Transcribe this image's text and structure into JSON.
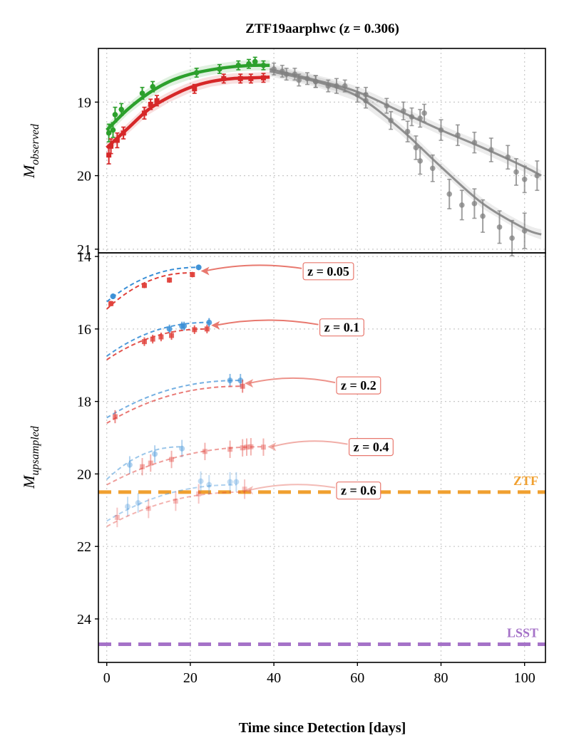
{
  "chart_data": [
    {
      "type": "line",
      "panel": "top",
      "title": "ZTF19aarphwc (z = 0.306)",
      "xlabel": "",
      "ylabel": "M_observed",
      "ylabel_main": "M",
      "ylabel_sub": "observed",
      "xlim": [
        -2,
        105
      ],
      "ylim_inverted": [
        21.05,
        18.27
      ],
      "yticks": [
        19,
        20,
        21
      ],
      "grid": true,
      "series": [
        {
          "name": "green band (early)",
          "color": "#2ca02c",
          "x": [
            0.5,
            1.5,
            2.0,
            3.5,
            8.5,
            11.0,
            21.5,
            27.0,
            31.5,
            34.0,
            35.5,
            37.5
          ],
          "y": [
            19.42,
            19.38,
            19.17,
            19.1,
            18.88,
            18.79,
            18.6,
            18.55,
            18.5,
            18.48,
            18.45,
            18.5
          ],
          "err": [
            0.12,
            0.1,
            0.1,
            0.08,
            0.08,
            0.07,
            0.06,
            0.06,
            0.06,
            0.06,
            0.06,
            0.06
          ],
          "fit": [
            [
              0,
              19.38
            ],
            [
              5,
              19.1
            ],
            [
              10,
              18.88
            ],
            [
              15,
              18.72
            ],
            [
              20,
              18.62
            ],
            [
              25,
              18.56
            ],
            [
              30,
              18.52
            ],
            [
              35,
              18.5
            ],
            [
              39,
              18.5
            ]
          ]
        },
        {
          "name": "red band (early)",
          "color": "#d62728",
          "x": [
            0.5,
            1.0,
            2.5,
            4.0,
            9.0,
            10.5,
            12.0,
            21.0,
            28.0,
            32.0,
            34.5,
            37.5
          ],
          "y": [
            19.72,
            19.6,
            19.52,
            19.42,
            19.15,
            19.03,
            18.98,
            18.82,
            18.68,
            18.68,
            18.68,
            18.67
          ],
          "err": [
            0.12,
            0.1,
            0.1,
            0.08,
            0.08,
            0.07,
            0.07,
            0.06,
            0.06,
            0.06,
            0.06,
            0.06
          ],
          "fit": [
            [
              0,
              19.62
            ],
            [
              5,
              19.36
            ],
            [
              10,
              19.1
            ],
            [
              15,
              18.93
            ],
            [
              20,
              18.8
            ],
            [
              25,
              18.72
            ],
            [
              30,
              18.68
            ],
            [
              35,
              18.67
            ],
            [
              39,
              18.66
            ]
          ]
        },
        {
          "name": "late band A",
          "color": "#808080",
          "x": [
            40,
            42,
            45,
            48,
            50,
            53,
            57,
            62,
            67,
            71,
            73,
            75,
            76,
            80,
            84,
            88,
            92,
            96,
            98,
            100,
            103
          ],
          "y": [
            18.55,
            18.58,
            18.62,
            18.68,
            18.72,
            18.78,
            18.78,
            18.9,
            19.05,
            19.12,
            19.2,
            19.22,
            19.15,
            19.38,
            19.45,
            19.55,
            19.65,
            19.75,
            19.95,
            20.05,
            20.0
          ],
          "err": [
            0.08,
            0.08,
            0.08,
            0.08,
            0.08,
            0.08,
            0.08,
            0.1,
            0.1,
            0.12,
            0.12,
            0.12,
            0.12,
            0.14,
            0.14,
            0.14,
            0.16,
            0.16,
            0.18,
            0.18,
            0.2
          ],
          "fit": [
            [
              39,
              18.55
            ],
            [
              50,
              18.7
            ],
            [
              60,
              18.86
            ],
            [
              70,
              19.12
            ],
            [
              80,
              19.38
            ],
            [
              90,
              19.62
            ],
            [
              100,
              19.88
            ],
            [
              104,
              20.0
            ]
          ]
        },
        {
          "name": "late band B",
          "color": "#808080",
          "x": [
            43,
            46,
            50,
            55,
            60,
            62,
            68,
            72,
            74,
            75,
            78,
            82,
            85,
            88,
            90,
            94,
            97,
            100
          ],
          "y": [
            18.62,
            18.7,
            18.72,
            18.78,
            18.9,
            18.98,
            19.25,
            19.4,
            19.62,
            19.8,
            19.9,
            20.25,
            20.4,
            20.38,
            20.55,
            20.7,
            20.85,
            20.75
          ],
          "err": [
            0.08,
            0.08,
            0.08,
            0.1,
            0.1,
            0.1,
            0.12,
            0.14,
            0.16,
            0.18,
            0.18,
            0.2,
            0.2,
            0.2,
            0.22,
            0.22,
            0.24,
            0.24
          ],
          "fit": [
            [
              39,
              18.58
            ],
            [
              50,
              18.72
            ],
            [
              60,
              18.92
            ],
            [
              70,
              19.35
            ],
            [
              80,
              19.88
            ],
            [
              90,
              20.38
            ],
            [
              100,
              20.72
            ],
            [
              104,
              20.8
            ]
          ]
        }
      ]
    },
    {
      "type": "line",
      "panel": "bottom",
      "title": "",
      "xlabel": "Time since Detection [days]",
      "ylabel": "M_upsampled",
      "ylabel_main": "M",
      "ylabel_sub": "upsampled",
      "xlim": [
        -2,
        105
      ],
      "ylim_inverted": [
        25.2,
        13.9
      ],
      "xticks": [
        0,
        20,
        40,
        60,
        80,
        100
      ],
      "yticks": [
        14,
        16,
        18,
        20,
        22,
        24
      ],
      "grid": true,
      "limits": [
        {
          "label": "ZTF",
          "value": 20.5,
          "color": "#f0a030"
        },
        {
          "label": "LSST",
          "value": 24.7,
          "color": "#a572c8"
        }
      ],
      "redshift_groups": [
        {
          "label": "z = 0.05",
          "label_x": 47,
          "label_y": 14.25,
          "arrow_to_x": 22.5,
          "arrow_to_y": 14.4,
          "alpha": 0.95,
          "blue": {
            "x": [
              1.5,
              22
            ],
            "y": [
              15.1,
              14.3
            ],
            "curve_start": 15.25,
            "curve_end": 14.3
          },
          "red": {
            "x": [
              1,
              9,
              15,
              20.5
            ],
            "y": [
              15.3,
              14.8,
              14.65,
              14.5
            ],
            "curve_start": 15.45,
            "curve_end": 14.45
          }
        },
        {
          "label": "z = 0.1",
          "label_x": 51,
          "label_y": 15.8,
          "arrow_to_x": 25,
          "arrow_to_y": 15.9,
          "alpha": 0.8,
          "blue": {
            "x": [
              15,
              18,
              18.5,
              24.5
            ],
            "y": [
              16.0,
              15.92,
              15.92,
              15.82
            ],
            "curve_start": 16.75,
            "curve_end": 15.82
          },
          "red": {
            "x": [
              9,
              11,
              13,
              15.5,
              21,
              24
            ],
            "y": [
              16.35,
              16.28,
              16.22,
              16.18,
              16.02,
              16.0
            ],
            "curve_start": 16.85,
            "curve_end": 16.0
          }
        },
        {
          "label": "z = 0.2",
          "label_x": 55,
          "label_y": 17.4,
          "arrow_to_x": 33,
          "arrow_to_y": 17.5,
          "alpha": 0.6,
          "blue": {
            "x": [
              29.5,
              32
            ],
            "y": [
              17.42,
              17.42
            ],
            "curve_start": 18.45,
            "curve_end": 17.42
          },
          "red": {
            "x": [
              2,
              32.5
            ],
            "y": [
              18.42,
              17.58
            ],
            "curve_start": 18.6,
            "curve_end": 17.58
          }
        },
        {
          "label": "z = 0.4",
          "label_x": 58,
          "label_y": 19.1,
          "arrow_to_x": 38.5,
          "arrow_to_y": 19.25,
          "alpha": 0.4,
          "blue": {
            "x": [
              5.5,
              11.5,
              18
            ],
            "y": [
              19.75,
              19.45,
              19.3
            ],
            "curve_start": 20.15,
            "curve_end": 19.25
          },
          "red": {
            "x": [
              8.5,
              10.5,
              15.5,
              23.5,
              29.5,
              32.5,
              33.5,
              34.5,
              37.5
            ],
            "y": [
              19.8,
              19.7,
              19.6,
              19.38,
              19.32,
              19.28,
              19.26,
              19.25,
              19.26
            ],
            "curve_start": 20.3,
            "curve_end": 19.25
          }
        },
        {
          "label": "z = 0.6",
          "label_x": 55,
          "label_y": 20.3,
          "arrow_to_x": 33,
          "arrow_to_y": 20.45,
          "alpha": 0.3,
          "blue": {
            "x": [
              5,
              7.5,
              22.5,
              24.5,
              29.5,
              31
            ],
            "y": [
              20.9,
              20.8,
              20.2,
              20.3,
              20.22,
              20.22
            ],
            "curve_start": 21.3,
            "curve_end": 20.3
          },
          "red": {
            "x": [
              2.5,
              10,
              16.5,
              22,
              33
            ],
            "y": [
              21.2,
              20.95,
              20.75,
              20.55,
              20.42
            ],
            "curve_start": 21.45,
            "curve_end": 20.5
          }
        }
      ]
    }
  ]
}
